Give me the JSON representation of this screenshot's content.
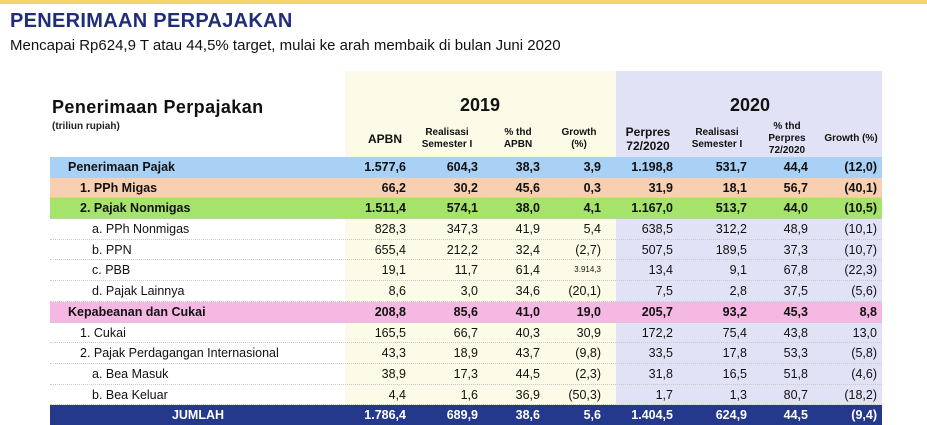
{
  "slide": {
    "title": "PENERIMAAN PERPAJAKAN",
    "subtitle": "Mencapai Rp624,9 T atau 44,5% target, mulai ke arah membaik di bulan Juni 2020"
  },
  "table": {
    "title": "Penerimaan Perpajakan",
    "unit": "(triliun rupiah)",
    "year_2019": "2019",
    "year_2020": "2020",
    "columns": [
      {
        "label": "APBN"
      },
      {
        "label": "Realisasi Semester I"
      },
      {
        "label": "% thd APBN"
      },
      {
        "label": "Growth (%)"
      },
      {
        "label": "Perpres 72/2020"
      },
      {
        "label": "Realisasi Semester I"
      },
      {
        "label": "% thd Perpres 72/2020"
      },
      {
        "label": "Growth (%)"
      }
    ],
    "rows": [
      {
        "label": "Penerimaan Pajak",
        "values": [
          "1.577,6",
          "604,3",
          "38,3",
          "3,9",
          "1.198,8",
          "531,7",
          "44,4",
          "(12,0)"
        ]
      },
      {
        "label": "1. PPh Migas",
        "values": [
          "66,2",
          "30,2",
          "45,6",
          "0,3",
          "31,9",
          "18,1",
          "56,7",
          "(40,1)"
        ]
      },
      {
        "label": "2. Pajak Nonmigas",
        "values": [
          "1.511,4",
          "574,1",
          "38,0",
          "4,1",
          "1.167,0",
          "513,7",
          "44,0",
          "(10,5)"
        ]
      },
      {
        "label": "a. PPh Nonmigas",
        "values": [
          "828,3",
          "347,3",
          "41,9",
          "5,4",
          "638,5",
          "312,2",
          "48,9",
          "(10,1)"
        ]
      },
      {
        "label": "b. PPN",
        "values": [
          "655,4",
          "212,2",
          "32,4",
          "(2,7)",
          "507,5",
          "189,5",
          "37,3",
          "(10,7)"
        ]
      },
      {
        "label": "c. PBB",
        "values": [
          "19,1",
          "11,7",
          "61,4",
          "3.914,3",
          "13,4",
          "9,1",
          "67,8",
          "(22,3)"
        ]
      },
      {
        "label": "d. Pajak Lainnya",
        "values": [
          "8,6",
          "3,0",
          "34,6",
          "(20,1)",
          "7,5",
          "2,8",
          "37,5",
          "(5,6)"
        ]
      },
      {
        "label": "Kepabeanan dan Cukai",
        "values": [
          "208,8",
          "85,6",
          "41,0",
          "19,0",
          "205,7",
          "93,2",
          "45,3",
          "8,8"
        ]
      },
      {
        "label": "1. Cukai",
        "values": [
          "165,5",
          "66,7",
          "40,3",
          "30,9",
          "172,2",
          "75,4",
          "43,8",
          "13,0"
        ]
      },
      {
        "label": "2. Pajak Perdagangan Internasional",
        "values": [
          "43,3",
          "18,9",
          "43,7",
          "(9,8)",
          "33,5",
          "17,8",
          "53,3",
          "(5,8)"
        ]
      },
      {
        "label": "a. Bea Masuk",
        "values": [
          "38,9",
          "17,3",
          "44,5",
          "(2,3)",
          "31,8",
          "16,5",
          "51,8",
          "(4,6)"
        ]
      },
      {
        "label": "b. Bea Keluar",
        "values": [
          "4,4",
          "1,6",
          "36,9",
          "(50,3)",
          "1,7",
          "1,3",
          "80,7",
          "(18,2)"
        ]
      },
      {
        "label": "JUMLAH",
        "values": [
          "1.786,4",
          "689,9",
          "38,6",
          "5,6",
          "1.404,5",
          "624,9",
          "44,5",
          "(9,4)"
        ]
      }
    ]
  },
  "colors": {
    "title": "#1f2d7a",
    "panel_2019": "#fbfbe7",
    "panel_2020": "#e2e2f6",
    "row_total_tax": "#a9d0f5",
    "row_pph_migas": "#f8cfb0",
    "row_nonmigas": "#a6e36a",
    "row_customs": "#f4b8e2",
    "row_sum": "#24398c"
  }
}
